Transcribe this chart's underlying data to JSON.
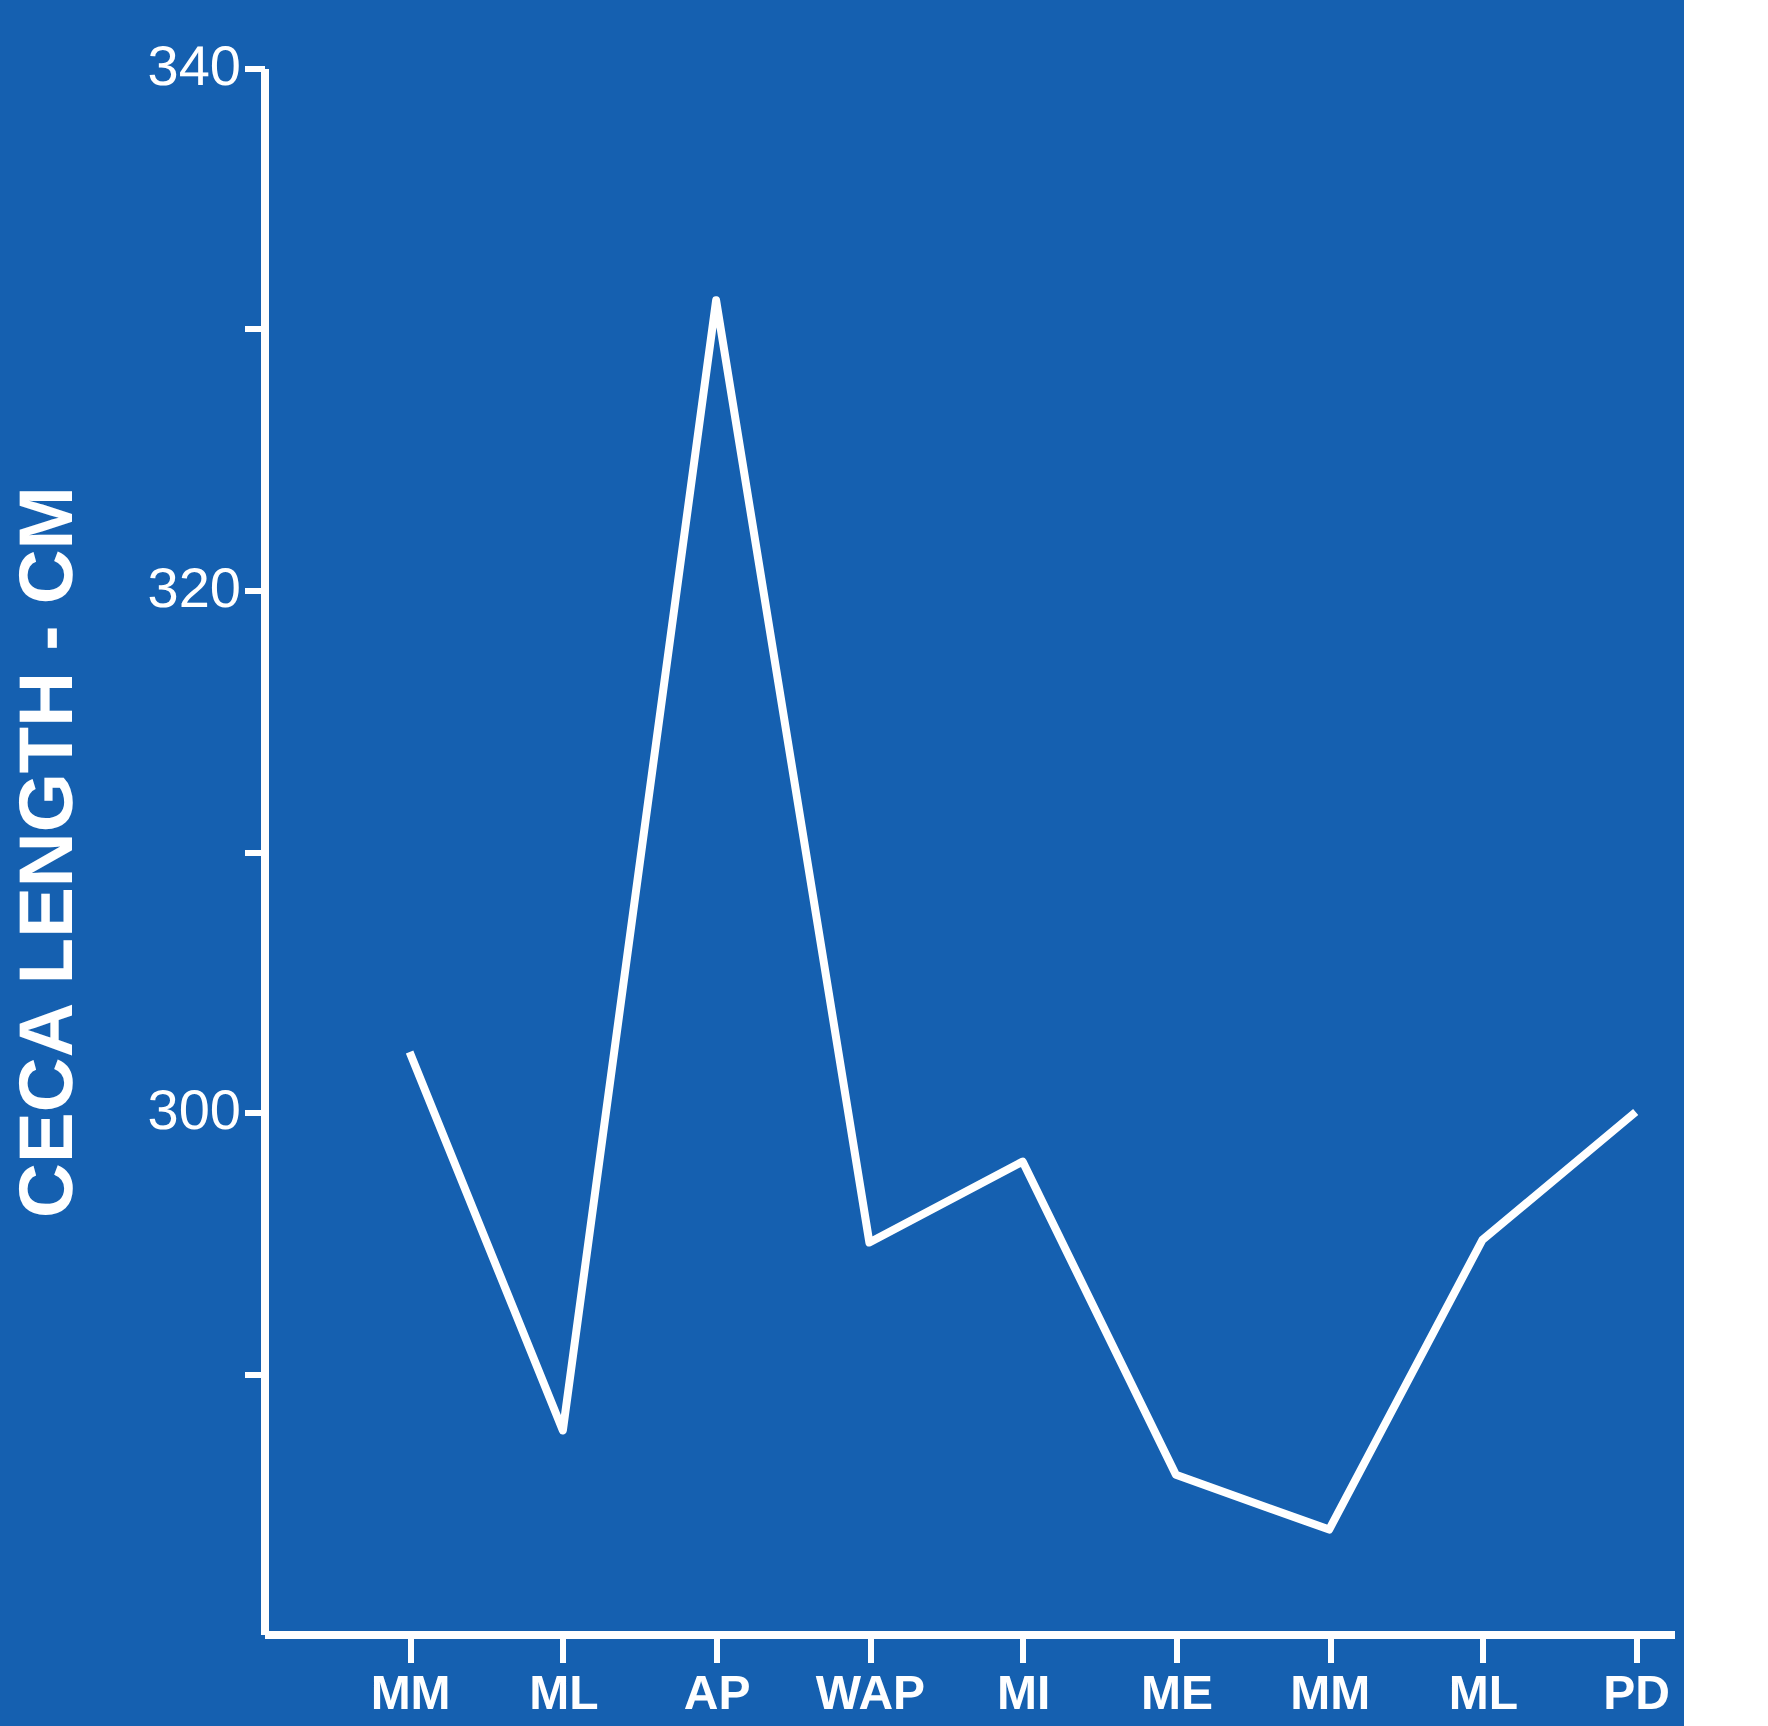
{
  "chart_data": {
    "type": "line",
    "ylabel": "CECA LENGTH - CM",
    "categories": [
      "MM",
      "ML",
      "AP",
      "WAP",
      "MI",
      "ME",
      "MM",
      "ML",
      "PD"
    ],
    "series": [
      {
        "color": "#ffffff",
        "values": [
          302.3,
          287.8,
          331.1,
          295.0,
          298.1,
          286.1,
          284.0,
          295.1,
          300.0
        ]
      }
    ],
    "ylim": [
      280,
      340
    ],
    "yticks": [
      {
        "value": 290,
        "label": null
      },
      300,
      {
        "value": 310,
        "label": null
      },
      320,
      {
        "value": 330,
        "label": null
      },
      340
    ],
    "grid": false,
    "marker": "none",
    "line_style": "solid"
  }
}
